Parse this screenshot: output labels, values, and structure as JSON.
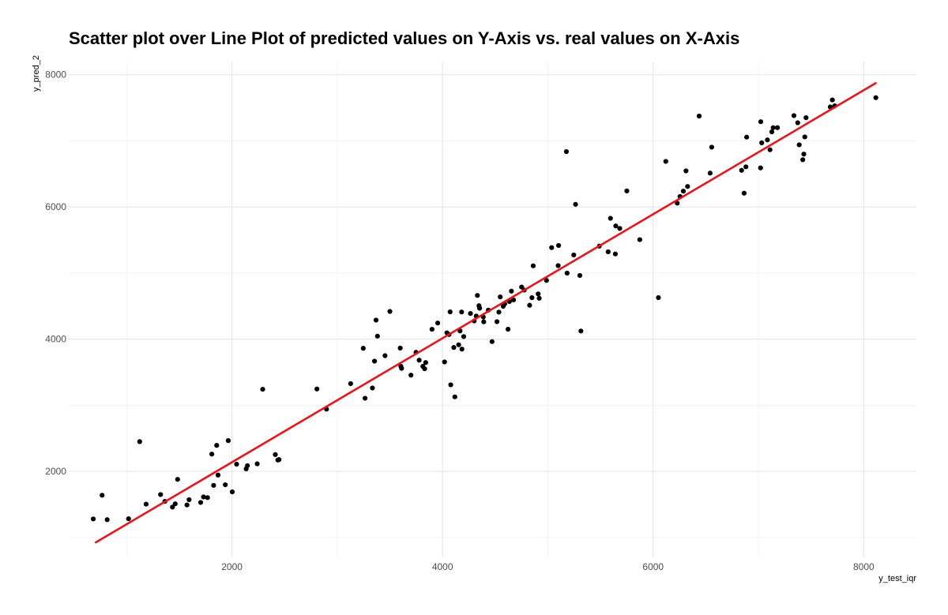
{
  "chart_data": {
    "type": "scatter",
    "title": "Scatter plot over Line Plot of predicted values on Y-Axis vs. real values on X-Axis",
    "xlabel": "y_test_iqr",
    "ylabel": "y_pred_2",
    "xlim": [
      450,
      8500
    ],
    "ylim": [
      700,
      8200
    ],
    "x_ticks": [
      2000,
      4000,
      6000,
      8000
    ],
    "y_ticks": [
      2000,
      4000,
      6000,
      8000
    ],
    "x_tick_labels": [
      "2000",
      "4000",
      "6000",
      "8000"
    ],
    "y_tick_labels": [
      "2000",
      "4000",
      "6000",
      "8000"
    ],
    "grid": true,
    "point_color": "#000000",
    "line_color": "#e8151b",
    "series": [
      {
        "type": "scatter",
        "points": [
          [
            683,
            1281
          ],
          [
            767,
            1640
          ],
          [
            815,
            1270
          ],
          [
            1018,
            1284
          ],
          [
            1124,
            2451
          ],
          [
            1185,
            1505
          ],
          [
            1322,
            1650
          ],
          [
            1363,
            1547
          ],
          [
            1435,
            1460
          ],
          [
            1461,
            1510
          ],
          [
            1484,
            1880
          ],
          [
            1573,
            1493
          ],
          [
            1593,
            1572
          ],
          [
            1703,
            1531
          ],
          [
            1730,
            1614
          ],
          [
            1768,
            1604
          ],
          [
            1809,
            2262
          ],
          [
            1826,
            1789
          ],
          [
            1855,
            2394
          ],
          [
            1868,
            1945
          ],
          [
            1937,
            1798
          ],
          [
            1965,
            2466
          ],
          [
            2003,
            1691
          ],
          [
            2044,
            2110
          ],
          [
            2135,
            2039
          ],
          [
            2147,
            2087
          ],
          [
            2240,
            2115
          ],
          [
            2292,
            3243
          ],
          [
            2412,
            2255
          ],
          [
            2436,
            2172
          ],
          [
            2447,
            2179
          ],
          [
            2807,
            3247
          ],
          [
            2898,
            2942
          ],
          [
            3127,
            3328
          ],
          [
            3247,
            3863
          ],
          [
            3264,
            3107
          ],
          [
            3334,
            3262
          ],
          [
            3354,
            3668
          ],
          [
            3368,
            4289
          ],
          [
            3382,
            4046
          ],
          [
            3454,
            3751
          ],
          [
            3500,
            4420
          ],
          [
            3598,
            3866
          ],
          [
            3604,
            3591
          ],
          [
            3611,
            3559
          ],
          [
            3700,
            3456
          ],
          [
            3748,
            3802
          ],
          [
            3778,
            3683
          ],
          [
            3813,
            3590
          ],
          [
            3830,
            3553
          ],
          [
            3840,
            3647
          ],
          [
            3900,
            4150
          ],
          [
            3954,
            4245
          ],
          [
            4019,
            3656
          ],
          [
            4041,
            4097
          ],
          [
            4062,
            4071
          ],
          [
            4072,
            4414
          ],
          [
            4078,
            3310
          ],
          [
            4107,
            3875
          ],
          [
            4117,
            3128
          ],
          [
            4153,
            3916
          ],
          [
            4166,
            4126
          ],
          [
            4181,
            4412
          ],
          [
            4184,
            3850
          ],
          [
            4201,
            4040
          ],
          [
            4265,
            4389
          ],
          [
            4300,
            4276
          ],
          [
            4320,
            4350
          ],
          [
            4331,
            4663
          ],
          [
            4346,
            4507
          ],
          [
            4352,
            4468
          ],
          [
            4387,
            4336
          ],
          [
            4391,
            4263
          ],
          [
            4435,
            4440
          ],
          [
            4470,
            3964
          ],
          [
            4517,
            4265
          ],
          [
            4535,
            4410
          ],
          [
            4548,
            4640
          ],
          [
            4576,
            4498
          ],
          [
            4590,
            4535
          ],
          [
            4622,
            4151
          ],
          [
            4635,
            4570
          ],
          [
            4654,
            4727
          ],
          [
            4674,
            4595
          ],
          [
            4751,
            4789
          ],
          [
            4776,
            4743
          ],
          [
            4827,
            4514
          ],
          [
            4849,
            4629
          ],
          [
            4861,
            5110
          ],
          [
            4908,
            4685
          ],
          [
            4918,
            4620
          ],
          [
            4987,
            4890
          ],
          [
            5036,
            5386
          ],
          [
            5098,
            5113
          ],
          [
            5102,
            5418
          ],
          [
            5176,
            6838
          ],
          [
            5183,
            5000
          ],
          [
            5246,
            5275
          ],
          [
            5263,
            6040
          ],
          [
            5304,
            4964
          ],
          [
            5314,
            4124
          ],
          [
            5489,
            5408
          ],
          [
            5573,
            5322
          ],
          [
            5595,
            5829
          ],
          [
            5641,
            5290
          ],
          [
            5645,
            5713
          ],
          [
            5683,
            5676
          ],
          [
            5750,
            6243
          ],
          [
            5873,
            5506
          ],
          [
            6050,
            4629
          ],
          [
            6120,
            6690
          ],
          [
            6229,
            6058
          ],
          [
            6255,
            6158
          ],
          [
            6287,
            6240
          ],
          [
            6312,
            6546
          ],
          [
            6327,
            6311
          ],
          [
            6437,
            7376
          ],
          [
            6541,
            6513
          ],
          [
            6556,
            6905
          ],
          [
            6840,
            6555
          ],
          [
            6864,
            6209
          ],
          [
            6881,
            6608
          ],
          [
            6888,
            7057
          ],
          [
            7020,
            6591
          ],
          [
            7022,
            7290
          ],
          [
            7031,
            6971
          ],
          [
            7085,
            7015
          ],
          [
            7110,
            6866
          ],
          [
            7127,
            7137
          ],
          [
            7140,
            7200
          ],
          [
            7180,
            7200
          ],
          [
            7337,
            7382
          ],
          [
            7373,
            7274
          ],
          [
            7387,
            6941
          ],
          [
            7421,
            6715
          ],
          [
            7431,
            6800
          ],
          [
            7440,
            7060
          ],
          [
            7452,
            7351
          ],
          [
            7682,
            7513
          ],
          [
            7702,
            7620
          ],
          [
            7725,
            7530
          ],
          [
            8115,
            7654
          ]
        ]
      },
      {
        "type": "line",
        "points": [
          [
            700,
            920
          ],
          [
            8120,
            7880
          ]
        ]
      }
    ]
  }
}
